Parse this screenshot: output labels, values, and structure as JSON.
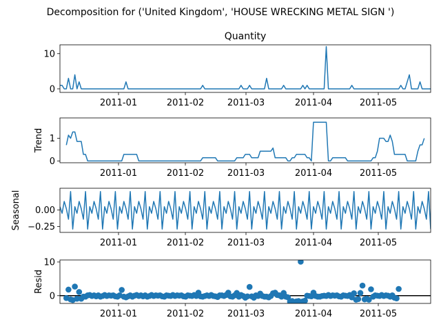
{
  "figure": {
    "suptitle": "Decomposition for ('United Kingdom', 'HOUSE WRECKING METAL SIGN ')"
  },
  "chart_data": [
    {
      "type": "line",
      "panel": "observed",
      "title": "Quantity",
      "ylabel": "",
      "color": "#1f77b4",
      "x_start": "2010-12-07",
      "x_end": "2011-05-30",
      "xticks": [
        "2011-01",
        "2011-02",
        "2011-03",
        "2011-04",
        "2011-05"
      ],
      "yticks": [
        0,
        10
      ],
      "ylim": [
        -1,
        12.5
      ],
      "series": [
        {
          "values": [
            1,
            1,
            0,
            0,
            3,
            0,
            0,
            4,
            0,
            2,
            0,
            0,
            0,
            0,
            0,
            0,
            0,
            0,
            0,
            0,
            0,
            0,
            0,
            0,
            0,
            0,
            0,
            0,
            0,
            0,
            0,
            2,
            0,
            0,
            0,
            0,
            0,
            0,
            0,
            0,
            0,
            0,
            0,
            0,
            0,
            0,
            0,
            0,
            0,
            0,
            0,
            0,
            0,
            0,
            0,
            0,
            0,
            0,
            0,
            0,
            0,
            0,
            0,
            0,
            0,
            0,
            0,
            1,
            0,
            0,
            0,
            0,
            0,
            0,
            0,
            0,
            0,
            0,
            0,
            0,
            0,
            0,
            0,
            0,
            0,
            1,
            0,
            0,
            0,
            1,
            0,
            0,
            0,
            0,
            0,
            0,
            0,
            3,
            0,
            0,
            0,
            0,
            0,
            0,
            0,
            1,
            0,
            0,
            0,
            0,
            0,
            0,
            0,
            0,
            1,
            0,
            1,
            0,
            0,
            0,
            0,
            0,
            0,
            0,
            0,
            12,
            0,
            0,
            0,
            0,
            0,
            0,
            0,
            0,
            0,
            0,
            0,
            1,
            0,
            0,
            0,
            0,
            0,
            0,
            0,
            0,
            0,
            0,
            0,
            0,
            0,
            0,
            0,
            0,
            0,
            0,
            0,
            0,
            0,
            0,
            1,
            0,
            0,
            2,
            4,
            0,
            0,
            0,
            0,
            2,
            0,
            0,
            0,
            0,
            0,
            0,
            0,
            0,
            0,
            0,
            3,
            2,
            0,
            2
          ]
        }
      ]
    },
    {
      "type": "line",
      "panel": "trend",
      "title": "",
      "ylabel": "Trend",
      "color": "#1f77b4",
      "xticks": [
        "2011-01",
        "2011-02",
        "2011-03",
        "2011-04",
        "2011-05"
      ],
      "yticks": [
        0,
        1
      ],
      "ylim": [
        -0.08,
        1.9
      ],
      "series": [
        {
          "start_index": 3,
          "values": [
            0.7,
            1.14,
            1,
            1.28,
            1.28,
            0.86,
            0.86,
            0.86,
            0.29,
            0.29,
            0,
            0,
            0,
            0,
            0,
            0,
            0,
            0,
            0,
            0,
            0,
            0,
            0,
            0,
            0,
            0,
            0,
            0.29,
            0.29,
            0.29,
            0.29,
            0.29,
            0.29,
            0.29,
            0,
            0,
            0,
            0,
            0,
            0,
            0,
            0,
            0,
            0,
            0,
            0,
            0,
            0,
            0,
            0,
            0,
            0,
            0,
            0,
            0,
            0,
            0,
            0,
            0,
            0,
            0,
            0,
            0,
            0,
            0.14,
            0.14,
            0.14,
            0.14,
            0.14,
            0.14,
            0.14,
            0,
            0,
            0,
            0,
            0,
            0,
            0,
            0,
            0,
            0.14,
            0.14,
            0.14,
            0.14,
            0.29,
            0.29,
            0.29,
            0.14,
            0.14,
            0.14,
            0.14,
            0.43,
            0.43,
            0.43,
            0.43,
            0.43,
            0.43,
            0.57,
            0.14,
            0.14,
            0.14,
            0.14,
            0.14,
            0.14,
            0,
            0,
            0.14,
            0.14,
            0.29,
            0.29,
            0.29,
            0.29,
            0.29,
            0.14,
            0.14,
            0,
            1.71,
            1.71,
            1.71,
            1.71,
            1.71,
            1.71,
            1.71,
            0,
            0,
            0.14,
            0.14,
            0.14,
            0.14,
            0.14,
            0.14,
            0.14,
            0,
            0,
            0,
            0,
            0,
            0,
            0,
            0,
            0,
            0,
            0,
            0,
            0.14,
            0.14,
            0.43,
            1,
            1,
            1,
            0.86,
            0.86,
            1.14,
            0.86,
            0.29,
            0.29,
            0.29,
            0.29,
            0.29,
            0.29,
            0,
            0,
            0,
            0,
            0,
            0.43,
            0.71,
            0.71,
            1
          ]
        }
      ]
    },
    {
      "type": "line",
      "panel": "seasonal",
      "title": "",
      "ylabel": "Seasonal",
      "color": "#1f77b4",
      "xticks": [
        "2011-01",
        "2011-02",
        "2011-03",
        "2011-04",
        "2011-05"
      ],
      "yticks": [
        -0.25,
        0.0
      ],
      "ytick_labels": [
        "−0.25",
        "0.00"
      ],
      "period": 7,
      "pattern": [
        0.05,
        -0.05,
        0.13,
        0.02,
        -0.14,
        0.28,
        -0.29
      ],
      "ylim": [
        -0.34,
        0.33
      ]
    },
    {
      "type": "scatter",
      "panel": "resid",
      "title": "",
      "ylabel": "Resid",
      "color": "#1f77b4",
      "zero_line": true,
      "xticks": [
        "2011-01",
        "2011-02",
        "2011-03",
        "2011-04",
        "2011-05"
      ],
      "yticks": [
        0,
        10
      ],
      "ylim": [
        -2.3,
        10.6
      ],
      "series": [
        {
          "start_index": 3,
          "values": [
            -0.7,
            1.8,
            -1.1,
            -1.3,
            2.7,
            -0.9,
            1.1,
            -0.9,
            -0.3,
            -0.3,
            0.1,
            0.2,
            -0.1,
            0.1,
            -0.2,
            0.1,
            -0.3,
            -0.1,
            0.2,
            -0.1,
            0.1,
            0,
            0.1,
            -0.2,
            -0.3,
            0.1,
            1.7,
            -0.3,
            -0.5,
            -0.2,
            0.1,
            -0.3,
            0,
            0.2,
            -0.1,
            0.1,
            -0.2,
            0.1,
            -0.3,
            -0.1,
            0.2,
            -0.1,
            0.1,
            0,
            0.1,
            -0.2,
            -0.3,
            0.1,
            0,
            -0.1,
            0.2,
            -0.1,
            0.1,
            0,
            0.1,
            -0.2,
            -0.3,
            0.1,
            0,
            -0.1,
            0.2,
            -0.1,
            0.9,
            -0.2,
            -0.3,
            -0.1,
            0.1,
            -0.1,
            0.2,
            -0.1,
            -0.2,
            -0.4,
            0.1,
            0.1,
            -0.1,
            0.2,
            0.9,
            -0.2,
            -0.3,
            0.1,
            0.8,
            -0.3,
            0.2,
            -0.1,
            -0.6,
            -0.2,
            2.6,
            -0.2,
            -0.6,
            0.1,
            -0.1,
            0.6,
            -0.1,
            -0.3,
            -0.3,
            -0.5,
            -0.1,
            0.7,
            0.9,
            0.2,
            0.1,
            -0.3,
            0.8,
            -0.3,
            -0.5,
            -1.8,
            -1.6,
            -1.9,
            -1.7,
            -1.6,
            10.1,
            -1.7,
            -1.5,
            0,
            -0.1,
            -0.2,
            0.9,
            -0.1,
            -0.3,
            -0.3,
            -0.1,
            0,
            -0.1,
            0.2,
            -0.1,
            0.1,
            0,
            0.1,
            -0.2,
            -0.3,
            0.1,
            0,
            -0.1,
            0.2,
            -0.5,
            0.7,
            -1.2,
            -1,
            0.8,
            3,
            -1.1,
            -0.9,
            -1.2,
            1.9,
            -0.3,
            0.1,
            0,
            -0.1,
            0.2,
            -0.1,
            0.1,
            0,
            -0.3,
            0.1,
            -0.6,
            -0.8,
            2
          ]
        }
      ]
    }
  ]
}
